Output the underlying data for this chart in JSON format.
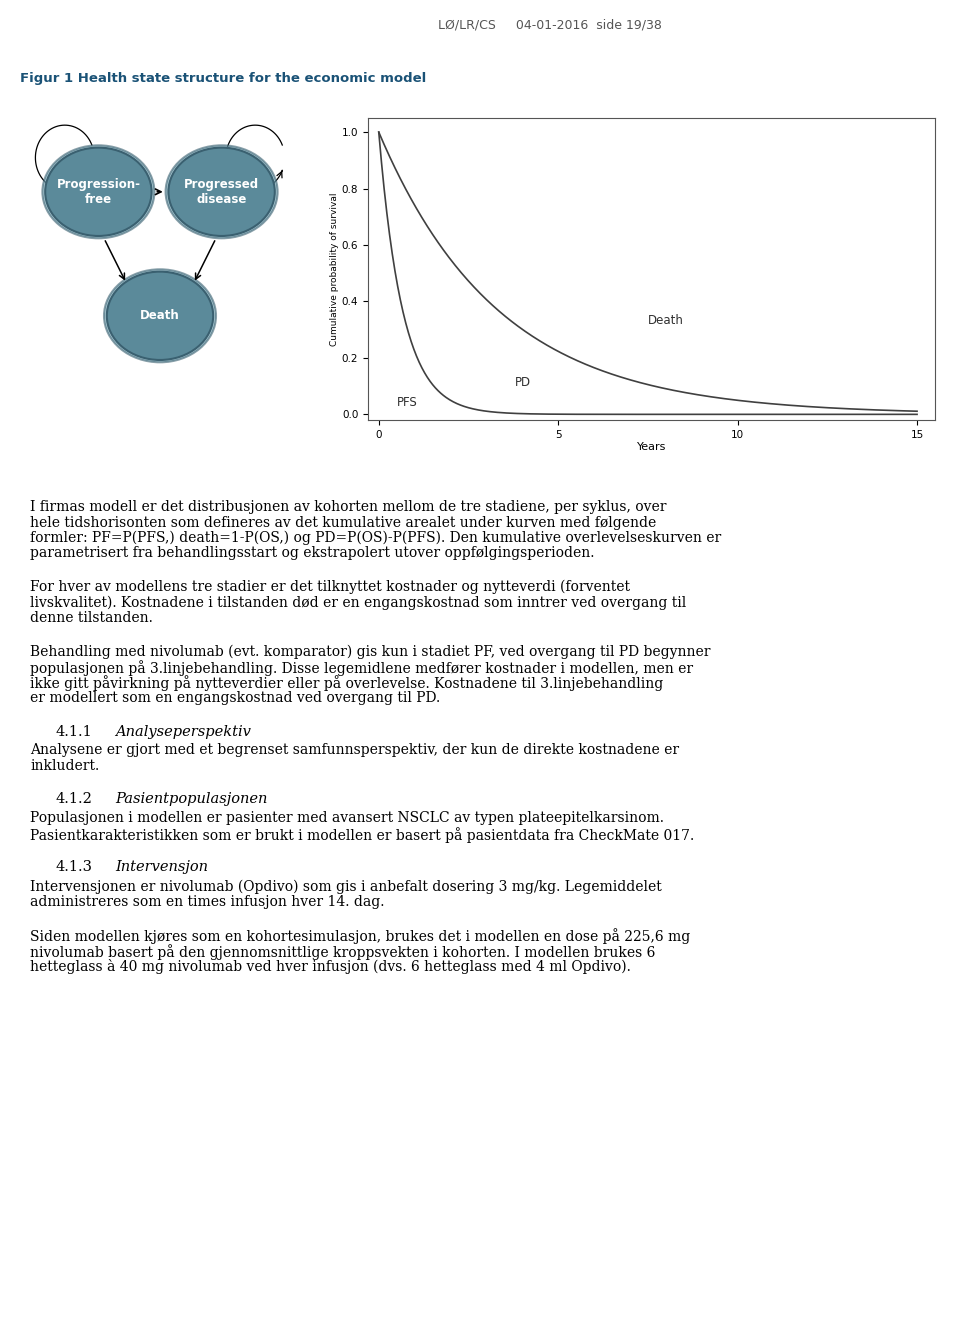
{
  "header_text": "LØ/LR/CS     04-01-2016  side 19/38",
  "fig_title": "Figur 1 Health state structure for the economic model",
  "node_progression_free": "Progression-\nfree",
  "node_progressed_disease": "Progressed\ndisease",
  "node_death": "Death",
  "ylabel_plot": "Cumulative probability of survival",
  "xlabel_plot": "Years",
  "label_death": "Death",
  "label_PD": "PD",
  "label_PFS": "PFS",
  "para0": "I firmas modell er det distribusjonen av kohorten mellom de tre stadiene, per syklus, over hele tidshorisonten som defineres av det kumulative arealet under kurven med følgende formler: PF=P(PFS,) death=1-P(OS,) og PD=P(OS)-P(PFS). Den kumulative overlevelseskurven er parametrisert fra behandlingsstart og ekstrapolert utover oppfølgingsperioden.",
  "para1": "For hver av modellens tre stadier er det tilknyttet kostnader og nytteverdi (forventet livskvalitet). Kostnadene i tilstanden død er en engangskostnad som inntrer ved overgang til denne tilstanden.",
  "para2": "Behandling med nivolumab (evt. komparator) gis kun i stadiet PF, ved overgang til PD begynner populasjonen på 3.linjebehandling. Disse legemidlene medfører kostnader i modellen, men er ikke gitt påvirkning på nytteverdier eller på overlevelse. Kostnadene til 3.linjebehandling er modellert som en engangskostnad ved overgang til PD.",
  "para3_num": "4.1.1",
  "para3_title": "Analyseperspektiv",
  "para4": "Analysene er gjort med et begrenset samfunnsperspektiv, der kun de direkte kostnadene er inkludert.",
  "para5_num": "4.1.2",
  "para5_title": "Pasientpopulasjonen",
  "para6": "Populasjonen i modellen er pasienter med avansert NSCLC av typen plateepitelkarsinom. Pasientkarakteristikken som er brukt i modellen er basert på pasientdata fra CheckMate 017.",
  "para7_num": "4.1.3",
  "para7_title": "Intervensjon",
  "para8": "Intervensjonen er nivolumab (Opdivo) som gis i anbefalt dosering 3 mg/kg. Legemiddelet administreres som en times infusjon hver 14. dag.",
  "para9": "Siden modellen kjøres som en kohortesimulasjon, brukes det i modellen en dose på 225,6 mg nivolumab basert på den gjennomsnittlige kroppsvekten i kohorten. I modellen brukes 6 hetteglass à 40 mg nivolumab ved hver infusjon (dvs. 6 hetteglass med 4 ml Opdivo).",
  "node_color": "#5b8a9a",
  "node_edge_color": "#3a6070",
  "node_text_color": "white",
  "background_color": "white",
  "text_color": "black",
  "header_color": "#555555"
}
